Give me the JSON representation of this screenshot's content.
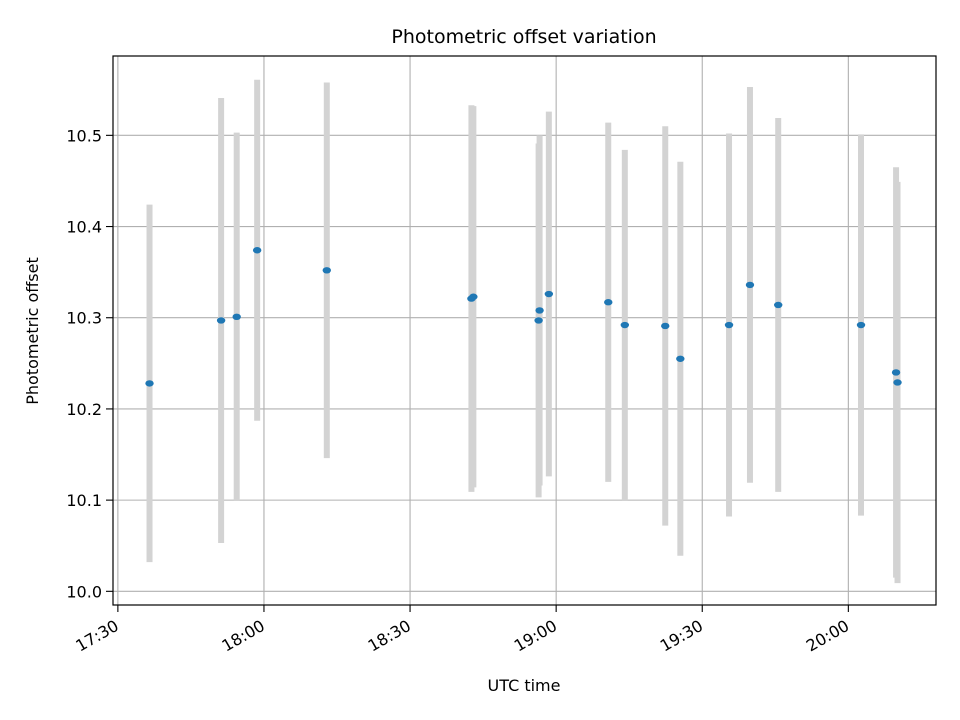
{
  "chart_data": {
    "type": "scatter",
    "title": "Photometric offset variation",
    "xlabel": "UTC time",
    "ylabel": "Photometric offset",
    "x_ticks": [
      "17:30",
      "18:00",
      "18:30",
      "19:00",
      "19:30",
      "20:00"
    ],
    "x_tick_minutes": [
      1050,
      1080,
      1110,
      1140,
      1170,
      1200
    ],
    "xlim_minutes": [
      1049,
      1218
    ],
    "y_ticks": [
      "10.0",
      "10.1",
      "10.2",
      "10.3",
      "10.4",
      "10.5"
    ],
    "y_tick_values": [
      10.0,
      10.1,
      10.2,
      10.3,
      10.4,
      10.5
    ],
    "ylim": [
      9.985,
      10.587
    ],
    "grid": true,
    "marker_color": "#1f77b4",
    "errorbar_color": "#d3d3d3",
    "points": [
      {
        "t": "17:36.5",
        "minute": 1056.5,
        "y": 10.228,
        "err": 0.196
      },
      {
        "t": "17:51.2",
        "minute": 1071.2,
        "y": 10.297,
        "err": 0.244
      },
      {
        "t": "17:54.4",
        "minute": 1074.4,
        "y": 10.301,
        "err": 0.202
      },
      {
        "t": "17:58.6",
        "minute": 1078.6,
        "y": 10.374,
        "err": 0.187
      },
      {
        "t": "18:12.9",
        "minute": 1092.9,
        "y": 10.352,
        "err": 0.206
      },
      {
        "t": "18:42.6",
        "minute": 1122.6,
        "y": 10.321,
        "err": 0.212
      },
      {
        "t": "18:43.0",
        "minute": 1123.0,
        "y": 10.323,
        "err": 0.209
      },
      {
        "t": "18:56.4",
        "minute": 1136.4,
        "y": 10.297,
        "err": 0.194
      },
      {
        "t": "18:56.6",
        "minute": 1136.6,
        "y": 10.308,
        "err": 0.192
      },
      {
        "t": "18:58.5",
        "minute": 1138.5,
        "y": 10.326,
        "err": 0.2
      },
      {
        "t": "19:10.7",
        "minute": 1150.7,
        "y": 10.317,
        "err": 0.197
      },
      {
        "t": "19:14.1",
        "minute": 1154.1,
        "y": 10.292,
        "err": 0.192
      },
      {
        "t": "19:22.4",
        "minute": 1162.4,
        "y": 10.291,
        "err": 0.219
      },
      {
        "t": "19:25.5",
        "minute": 1165.5,
        "y": 10.255,
        "err": 0.216
      },
      {
        "t": "19:35.5",
        "minute": 1175.5,
        "y": 10.292,
        "err": 0.21
      },
      {
        "t": "19:39.8",
        "minute": 1179.8,
        "y": 10.336,
        "err": 0.217
      },
      {
        "t": "19:45.6",
        "minute": 1185.6,
        "y": 10.314,
        "err": 0.205
      },
      {
        "t": "20:02.6",
        "minute": 1202.6,
        "y": 10.292,
        "err": 0.209
      },
      {
        "t": "20:09.8",
        "minute": 1209.8,
        "y": 10.24,
        "err": 0.225
      },
      {
        "t": "20:10.1",
        "minute": 1210.1,
        "y": 10.229,
        "err": 0.22
      }
    ]
  }
}
